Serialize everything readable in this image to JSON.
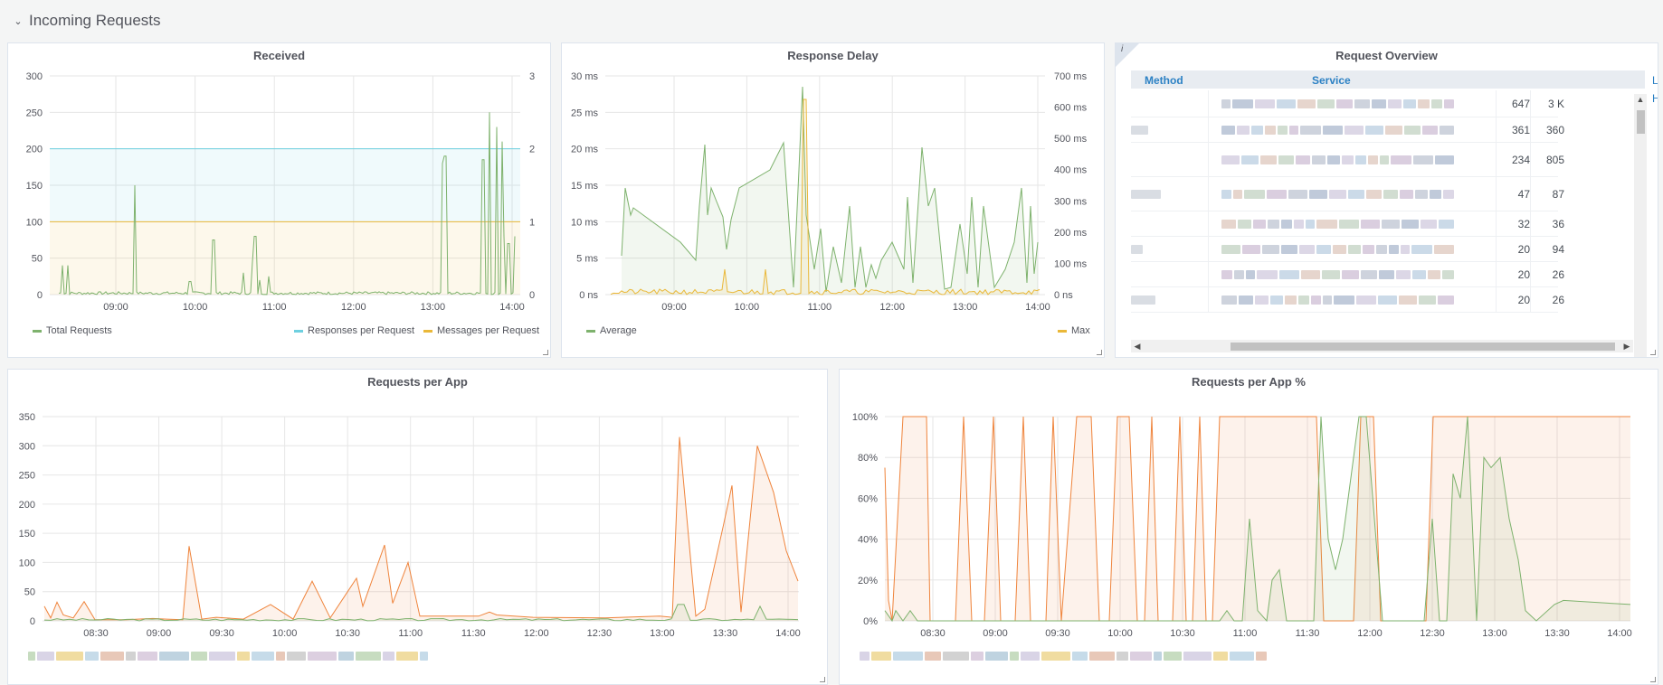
{
  "row": {
    "title": "Incoming Requests",
    "chevron": "chevron-down-icon"
  },
  "colors": {
    "green": "#7eb26d",
    "blue": "#6ed0e0",
    "yellow": "#eab839",
    "orange": "#ef843c",
    "link": "#2c81c4"
  },
  "panels": {
    "received": {
      "title": "Received",
      "y_ticks": [
        "300",
        "250",
        "200",
        "150",
        "100",
        "50",
        "0"
      ],
      "y2_ticks": [
        "3",
        "2",
        "1",
        "0"
      ],
      "x_ticks": [
        "09:00",
        "10:00",
        "11:00",
        "12:00",
        "13:00",
        "14:00"
      ],
      "legend": {
        "total": "Total Requests",
        "responses": "Responses per Request",
        "messages": "Messages per Request"
      }
    },
    "delay": {
      "title": "Response Delay",
      "y_ticks": [
        "30 ms",
        "25 ms",
        "20 ms",
        "15 ms",
        "10 ms",
        "5 ms",
        "0 ns"
      ],
      "y2_ticks": [
        "700 ms",
        "600 ms",
        "500 ms",
        "400 ms",
        "300 ms",
        "200 ms",
        "100 ms",
        "0 ns"
      ],
      "x_ticks": [
        "09:00",
        "10:00",
        "11:00",
        "12:00",
        "13:00",
        "14:00"
      ],
      "legend": {
        "average": "Average",
        "max": "Max"
      }
    },
    "overview": {
      "title": "Request Overview",
      "info": "i",
      "columns": {
        "method": "Method",
        "service": "Service"
      },
      "overflow": [
        "L",
        "H"
      ],
      "rows": [
        {
          "a": "647",
          "b": "3 K"
        },
        {
          "a": "361",
          "b": "360"
        },
        {
          "a": "234",
          "b": "805"
        },
        {
          "a": "47",
          "b": "87"
        },
        {
          "a": "32",
          "b": "36"
        },
        {
          "a": "20",
          "b": "94"
        },
        {
          "a": "20",
          "b": "26"
        },
        {
          "a": "20",
          "b": "26"
        }
      ]
    },
    "per_app": {
      "title": "Requests per App",
      "y_ticks": [
        "350",
        "300",
        "250",
        "200",
        "150",
        "100",
        "50",
        "0"
      ],
      "x_ticks": [
        "08:30",
        "09:00",
        "09:30",
        "10:00",
        "10:30",
        "11:00",
        "11:30",
        "12:00",
        "12:30",
        "13:00",
        "13:30",
        "14:00"
      ]
    },
    "per_app_pct": {
      "title": "Requests per App %",
      "y_ticks": [
        "100%",
        "80%",
        "60%",
        "40%",
        "20%",
        "0%"
      ],
      "x_ticks": [
        "08:30",
        "09:00",
        "09:30",
        "10:00",
        "10:30",
        "11:00",
        "11:30",
        "12:00",
        "12:30",
        "13:00",
        "13:30",
        "14:00"
      ]
    }
  }
}
